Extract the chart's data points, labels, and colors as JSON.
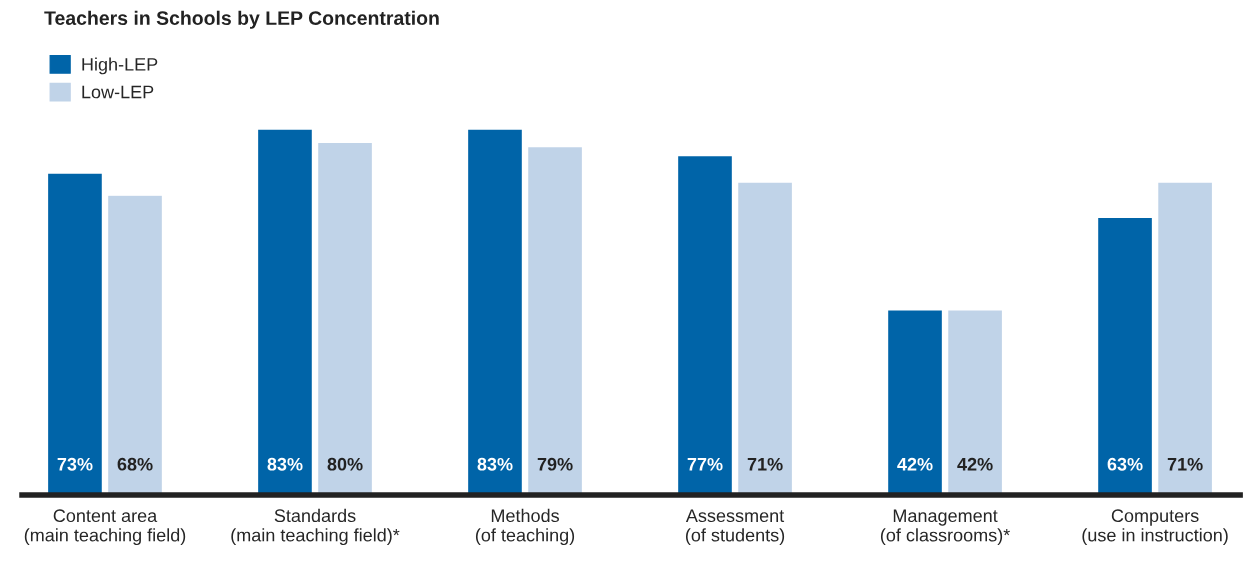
{
  "chart_data": {
    "type": "bar",
    "title": "Teachers in Schools by LEP Concentration",
    "categories": [
      "Content area\n(main teaching field)",
      "Standards\n(main teaching field)*",
      "Methods\n(of teaching)",
      "Assessment\n(of students)",
      "Management\n(of classrooms)*",
      "Computers\n(use in instruction)"
    ],
    "series": [
      {
        "name": "High-LEP",
        "color": "#0064a8",
        "values": [
          73,
          83,
          83,
          77,
          42,
          63
        ],
        "value_labels": [
          "73%",
          "83%",
          "83%",
          "77%",
          "42%",
          "63%"
        ]
      },
      {
        "name": "Low-LEP",
        "color": "#c0d3e8",
        "values": [
          68,
          80,
          79,
          71,
          42,
          71
        ],
        "value_labels": [
          "68%",
          "80%",
          "79%",
          "71%",
          "42%",
          "71%"
        ]
      }
    ],
    "tick_labels": "x",
    "grid": false,
    "legend": "top left"
  }
}
